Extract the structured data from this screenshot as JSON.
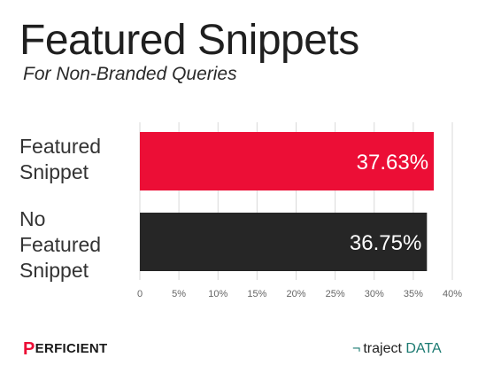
{
  "title": "Featured Snippets",
  "subtitle": "For Non-Branded Queries",
  "brands": {
    "left_accent": "P",
    "left": "ERFICIENT",
    "right_mark": "¬",
    "right_main": "traject",
    "right_data": "DATA"
  },
  "colors": {
    "bar_featured": "#ec0e36",
    "bar_no_featured": "#262626",
    "gridline": "#d9d9d9",
    "tick_text": "#666666"
  },
  "chart_data": {
    "type": "bar",
    "orientation": "horizontal",
    "categories": [
      "Featured\nSnippet",
      "No\nFeatured\nSnippet"
    ],
    "values": [
      37.63,
      36.75
    ],
    "value_labels": [
      "37.63%",
      "36.75%"
    ],
    "xlim": [
      0,
      40
    ],
    "xticks": [
      0,
      5,
      10,
      15,
      20,
      25,
      30,
      35,
      40
    ],
    "xtick_labels": [
      "0",
      "5%",
      "10%",
      "15%",
      "20%",
      "25%",
      "30%",
      "35%",
      "40%"
    ],
    "grid": "vertical"
  }
}
